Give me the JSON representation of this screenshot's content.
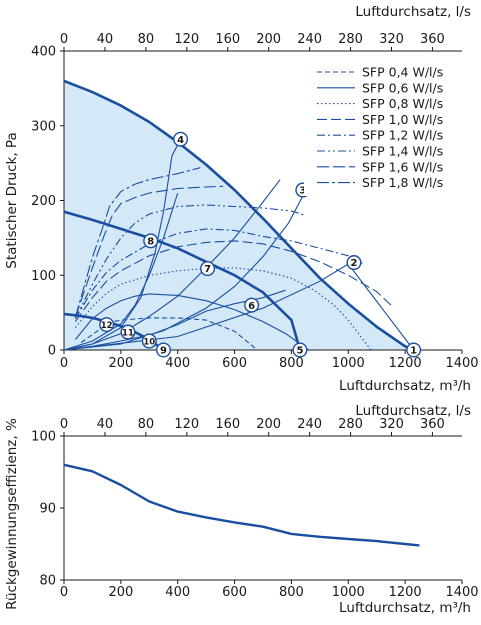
{
  "chart_data": [
    {
      "type": "line",
      "xlabel": "Luftdurchsatz, m³/h",
      "ylabel": "Statischer Druck, Pa",
      "x2label": "Luftdurchsatz, l/s",
      "xlim": [
        0,
        1400
      ],
      "ylim": [
        0,
        400
      ],
      "x2lim": [
        0,
        388.9
      ],
      "xticks": [
        0,
        200,
        400,
        600,
        800,
        1000,
        1200,
        1400
      ],
      "x2ticks": [
        0,
        40,
        80,
        120,
        160,
        200,
        240,
        280,
        320,
        360
      ],
      "yticks": [
        0,
        100,
        200,
        300,
        400
      ],
      "grid": false,
      "legend": "top-right",
      "colors": {
        "main": "#1a4fa0",
        "fill": "#d4e8f7"
      },
      "fan_curves": [
        {
          "points": [
            [
              0,
              360
            ],
            [
              100,
              345
            ],
            [
              200,
              327
            ],
            [
              300,
              305
            ],
            [
              400,
              278
            ],
            [
              500,
              248
            ],
            [
              600,
              214
            ],
            [
              700,
              176
            ],
            [
              800,
              136
            ],
            [
              900,
              96
            ],
            [
              1000,
              62
            ],
            [
              1100,
              31
            ],
            [
              1200,
              5
            ],
            [
              1230,
              0
            ]
          ]
        },
        {
          "points": [
            [
              0,
              185
            ],
            [
              100,
              174
            ],
            [
              200,
              162
            ],
            [
              300,
              150
            ],
            [
              400,
              136
            ],
            [
              500,
              118
            ],
            [
              600,
              100
            ],
            [
              700,
              77
            ],
            [
              800,
              40
            ],
            [
              830,
              0
            ]
          ]
        },
        {
          "points": [
            [
              0,
              48
            ],
            [
              50,
              46
            ],
            [
              100,
              43
            ],
            [
              150,
              38
            ],
            [
              200,
              32
            ],
            [
              250,
              24
            ],
            [
              300,
              14
            ],
            [
              350,
              0
            ]
          ]
        }
      ],
      "series": [
        {
          "name": "SFP 0,4 W/l/s",
          "dash": "5,3",
          "points": [
            [
              60,
              10
            ],
            [
              120,
              26
            ],
            [
              150,
              36
            ],
            [
              200,
              40
            ],
            [
              300,
              43
            ],
            [
              400,
              43
            ],
            [
              500,
              40
            ],
            [
              600,
              25
            ],
            [
              680,
              0
            ]
          ]
        },
        {
          "name": "SFP 0,6 W/l/s",
          "dash": "",
          "points": [
            [
              40,
              14
            ],
            [
              100,
              42
            ],
            [
              150,
              56
            ],
            [
              200,
              66
            ],
            [
              250,
              72
            ],
            [
              300,
              75
            ],
            [
              400,
              73
            ],
            [
              500,
              66
            ],
            [
              600,
              54
            ],
            [
              700,
              38
            ],
            [
              780,
              22
            ],
            [
              860,
              0
            ]
          ]
        },
        {
          "name": "SFP 0,8 W/l/s",
          "dash": "1.5,2.5",
          "points": [
            [
              40,
              30
            ],
            [
              100,
              58
            ],
            [
              150,
              76
            ],
            [
              200,
              88
            ],
            [
              300,
              100
            ],
            [
              400,
              106
            ],
            [
              500,
              109
            ],
            [
              600,
              110
            ],
            [
              700,
              106
            ],
            [
              800,
              96
            ],
            [
              880,
              80
            ],
            [
              950,
              60
            ],
            [
              1000,
              40
            ],
            [
              1080,
              0
            ]
          ]
        },
        {
          "name": "SFP 1,0 W/l/s",
          "dash": "10,4",
          "points": [
            [
              40,
              38
            ],
            [
              100,
              70
            ],
            [
              150,
              92
            ],
            [
              200,
              106
            ],
            [
              300,
              126
            ],
            [
              400,
              138
            ],
            [
              500,
              144
            ],
            [
              600,
              146
            ],
            [
              700,
              142
            ],
            [
              800,
              132
            ],
            [
              900,
              118
            ],
            [
              1000,
              100
            ],
            [
              1100,
              78
            ],
            [
              1150,
              60
            ]
          ]
        },
        {
          "name": "SFP 1,2 W/l/s",
          "dash": "8,3,2,3",
          "points": [
            [
              40,
              42
            ],
            [
              100,
              80
            ],
            [
              150,
              104
            ],
            [
              200,
              120
            ],
            [
              300,
              142
            ],
            [
              400,
              156
            ],
            [
              500,
              162
            ],
            [
              600,
              160
            ],
            [
              700,
              152
            ],
            [
              800,
              146
            ],
            [
              900,
              136
            ],
            [
              1000,
              126
            ],
            [
              1050,
              116
            ]
          ]
        },
        {
          "name": "SFP 1,4 W/l/s",
          "dash": "8,3,2,3,2,3",
          "points": [
            [
              40,
              42
            ],
            [
              100,
              88
            ],
            [
              150,
              122
            ],
            [
              200,
              150
            ],
            [
              250,
              170
            ],
            [
              300,
              182
            ],
            [
              400,
              192
            ],
            [
              500,
              194
            ],
            [
              600,
              192
            ],
            [
              700,
              190
            ],
            [
              800,
              186
            ],
            [
              850,
              180
            ]
          ]
        },
        {
          "name": "SFP 1,6 W/l/s",
          "dash": "12,4",
          "points": [
            [
              40,
              44
            ],
            [
              100,
              110
            ],
            [
              140,
              152
            ],
            [
              170,
              180
            ],
            [
              200,
              196
            ],
            [
              250,
              204
            ],
            [
              300,
              210
            ],
            [
              400,
              216
            ],
            [
              500,
              218
            ],
            [
              560,
              219
            ]
          ]
        },
        {
          "name": "SFP 1,8 W/l/s",
          "dash": "12,3,3,3",
          "points": [
            [
              40,
              44
            ],
            [
              100,
              124
            ],
            [
              140,
              168
            ],
            [
              160,
              192
            ],
            [
              200,
              212
            ],
            [
              250,
              222
            ],
            [
              300,
              228
            ],
            [
              400,
              236
            ],
            [
              480,
              244
            ]
          ]
        }
      ],
      "system_curves": [
        {
          "points": [
            [
              0,
              0
            ],
            [
              400,
              18
            ],
            [
              700,
              56
            ],
            [
              900,
              92
            ],
            [
              1000,
              115
            ],
            [
              1230,
              0
            ]
          ]
        },
        {
          "points": [
            [
              0,
              0
            ],
            [
              200,
              8
            ],
            [
              350,
              26
            ],
            [
              500,
              56
            ],
            [
              600,
              85
            ],
            [
              700,
              125
            ],
            [
              790,
              170
            ],
            [
              850,
              213
            ]
          ]
        },
        {
          "points": [
            [
              0,
              0
            ],
            [
              100,
              8
            ],
            [
              200,
              30
            ],
            [
              270,
              70
            ],
            [
              320,
              130
            ],
            [
              350,
              185
            ],
            [
              380,
              260
            ],
            [
              410,
              282
            ]
          ]
        },
        {
          "points": [
            [
              0,
              0
            ],
            [
              100,
              5
            ],
            [
              200,
              12
            ],
            [
              300,
              20
            ],
            [
              400,
              34
            ],
            [
              500,
              52
            ],
            [
              600,
              62
            ],
            [
              700,
              70
            ],
            [
              780,
              80
            ]
          ]
        },
        {
          "points": [
            [
              0,
              0
            ],
            [
              100,
              8
            ],
            [
              200,
              22
            ],
            [
              300,
              45
            ],
            [
              400,
              72
            ],
            [
              500,
              110
            ],
            [
              600,
              150
            ],
            [
              700,
              198
            ],
            [
              760,
              228
            ]
          ]
        },
        {
          "points": [
            [
              0,
              0
            ],
            [
              100,
              12
            ],
            [
              200,
              35
            ],
            [
              250,
              60
            ],
            [
              300,
              100
            ],
            [
              350,
              150
            ],
            [
              400,
              210
            ]
          ]
        }
      ],
      "markers": [
        {
          "label": "1",
          "x": 1230,
          "y": 0
        },
        {
          "label": "2",
          "x": 1020,
          "y": 117
        },
        {
          "label": "3",
          "x": 840,
          "y": 214
        },
        {
          "label": "4",
          "x": 410,
          "y": 282
        },
        {
          "label": "5",
          "x": 830,
          "y": 0
        },
        {
          "label": "6",
          "x": 660,
          "y": 60
        },
        {
          "label": "7",
          "x": 505,
          "y": 109
        },
        {
          "label": "8",
          "x": 305,
          "y": 146
        },
        {
          "label": "9",
          "x": 350,
          "y": 0
        },
        {
          "label": "10",
          "x": 300,
          "y": 12
        },
        {
          "label": "11",
          "x": 225,
          "y": 24
        },
        {
          "label": "12",
          "x": 150,
          "y": 34
        }
      ]
    },
    {
      "type": "line",
      "xlabel": "Luftdurchsatz, m³/h",
      "ylabel": "Rückgewinnungseffizienz, %",
      "x2label": "Luftdurchsatz, l/s",
      "xlim": [
        0,
        1400
      ],
      "ylim": [
        80,
        100
      ],
      "xticks": [
        0,
        200,
        400,
        600,
        800,
        1000,
        1200,
        1400
      ],
      "x2ticks": [
        0,
        40,
        80,
        120,
        160,
        200,
        240,
        280,
        320,
        360
      ],
      "yticks": [
        80,
        90,
        100
      ],
      "grid": false,
      "series": [
        {
          "points": [
            [
              0,
              96
            ],
            [
              100,
              95.1
            ],
            [
              200,
              93.2
            ],
            [
              300,
              90.9
            ],
            [
              400,
              89.5
            ],
            [
              500,
              88.7
            ],
            [
              600,
              88.0
            ],
            [
              700,
              87.4
            ],
            [
              800,
              86.4
            ],
            [
              900,
              86.0
            ],
            [
              1000,
              85.7
            ],
            [
              1100,
              85.4
            ],
            [
              1200,
              85.0
            ],
            [
              1250,
              84.8
            ]
          ]
        }
      ]
    }
  ]
}
